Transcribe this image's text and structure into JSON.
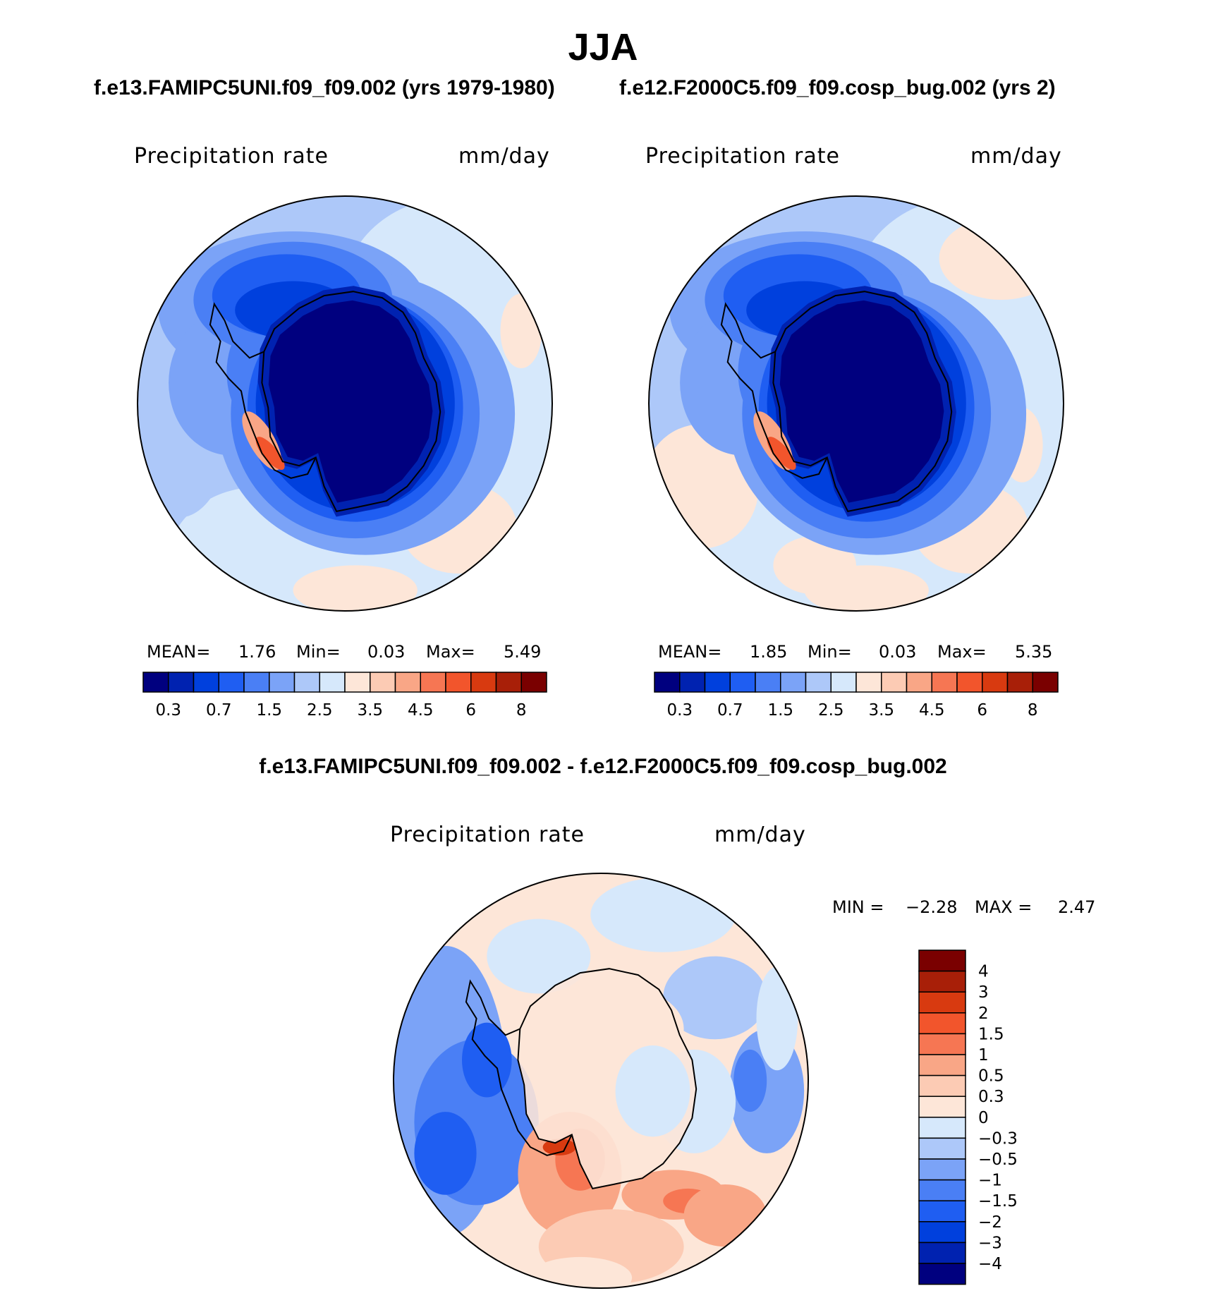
{
  "title": "JJA",
  "panels": [
    {
      "case_title": "f.e13.FAMIPC5UNI.f09_f09.002 (yrs 1979-1980)",
      "variable": "Precipitation rate",
      "units": "mm/day",
      "stats": {
        "mean_label": "MEAN=",
        "mean": "1.76",
        "min_label": "Min=",
        "min": "0.03",
        "max_label": "Max=",
        "max": "5.49"
      }
    },
    {
      "case_title": "f.e12.F2000C5.f09_f09.cosp_bug.002 (yrs 2)",
      "variable": "Precipitation rate",
      "units": "mm/day",
      "stats": {
        "mean_label": "MEAN=",
        "mean": "1.85",
        "min_label": "Min=",
        "min": "0.03",
        "max_label": "Max=",
        "max": "5.35"
      }
    },
    {
      "case_title": "f.e13.FAMIPC5UNI.f09_f09.002 - f.e12.F2000C5.f09_f09.cosp_bug.002",
      "variable": "Precipitation rate",
      "units": "mm/day",
      "stats": {
        "min_label": "MIN =",
        "min": "−2.28",
        "max_label": "MAX =",
        "max": "2.47"
      }
    }
  ],
  "colors": {
    "abs_scale": [
      "#00007f",
      "#0022b0",
      "#0040dd",
      "#1f5ef2",
      "#4a7ff5",
      "#7ba3f7",
      "#adc8f9",
      "#d6e8fb",
      "#fde6d8",
      "#fccbb4",
      "#f9a686",
      "#f67653",
      "#f2552c",
      "#d83a10",
      "#a81f08",
      "#7a0000"
    ],
    "diff_scale": [
      "#00007f",
      "#0022b0",
      "#0040dd",
      "#1f5ef2",
      "#4a7ff5",
      "#7ba3f7",
      "#adc8f9",
      "#d6e8fb",
      "#fde6d8",
      "#fccbb4",
      "#f9a686",
      "#f67653",
      "#f2552c",
      "#d83a10",
      "#a81f08",
      "#7a0000"
    ],
    "coast": "#000000"
  },
  "chart_data": [
    {
      "type": "heatmap",
      "projection": "south-polar-stereographic",
      "title": "f.e13.FAMIPC5UNI.f09_f09.002 (yrs 1979-1980)",
      "variable": "Precipitation rate",
      "units": "mm/day",
      "mean": 1.76,
      "min": 0.03,
      "max": 5.49,
      "colorbar_levels": [
        "0.3",
        "0.5",
        "0.7",
        "1",
        "1.5",
        "2",
        "2.5",
        "3",
        "3.5",
        "4",
        "4.5",
        "5",
        "6",
        "7",
        "8"
      ],
      "colorbar_tick_labels": [
        "0.3",
        "0.7",
        "1.5",
        "2.5",
        "3.5",
        "4.5",
        "6",
        "8"
      ],
      "colorbar_orientation": "horizontal"
    },
    {
      "type": "heatmap",
      "projection": "south-polar-stereographic",
      "title": "f.e12.F2000C5.f09_f09.cosp_bug.002 (yrs 2)",
      "variable": "Precipitation rate",
      "units": "mm/day",
      "mean": 1.85,
      "min": 0.03,
      "max": 5.35,
      "colorbar_levels": [
        "0.3",
        "0.5",
        "0.7",
        "1",
        "1.5",
        "2",
        "2.5",
        "3",
        "3.5",
        "4",
        "4.5",
        "5",
        "6",
        "7",
        "8"
      ],
      "colorbar_tick_labels": [
        "0.3",
        "0.7",
        "1.5",
        "2.5",
        "3.5",
        "4.5",
        "6",
        "8"
      ],
      "colorbar_orientation": "horizontal"
    },
    {
      "type": "heatmap",
      "projection": "south-polar-stereographic",
      "title": "f.e13.FAMIPC5UNI.f09_f09.002 - f.e12.F2000C5.f09_f09.cosp_bug.002",
      "variable": "Precipitation rate",
      "units": "mm/day",
      "min": -2.28,
      "max": 2.47,
      "colorbar_levels": [
        "4",
        "3",
        "2",
        "1.5",
        "1",
        "0.5",
        "0.3",
        "0",
        "−0.3",
        "−0.5",
        "−1",
        "−1.5",
        "−2",
        "−3",
        "−4"
      ],
      "colorbar_tick_labels": [
        "4",
        "3",
        "2",
        "1.5",
        "1",
        "0.5",
        "0.3",
        "0",
        "−0.3",
        "−0.5",
        "−1",
        "−1.5",
        "−2",
        "−3",
        "−4"
      ],
      "colorbar_orientation": "vertical"
    }
  ]
}
